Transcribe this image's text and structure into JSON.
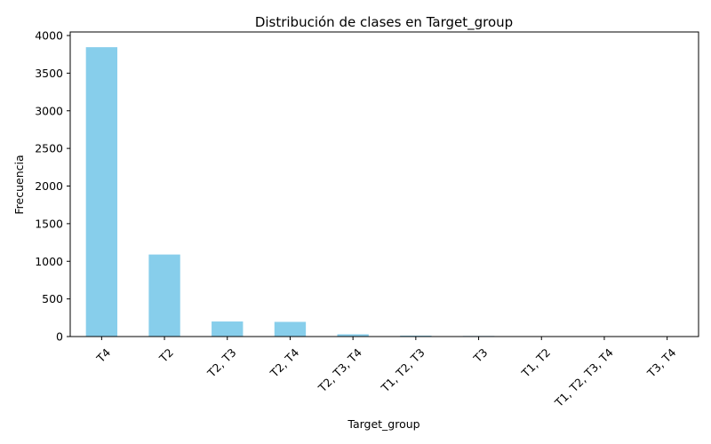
{
  "chart_data": {
    "type": "bar",
    "title": "Distribución de clases en Target_group",
    "xlabel": "Target_group",
    "ylabel": "Frecuencia",
    "categories": [
      "T4",
      "T2",
      "T2, T3",
      "T2, T4",
      "T2, T3, T4",
      "T1, T2, T3",
      "T3",
      "T1, T2",
      "T1, T2, T3, T4",
      "T3, T4"
    ],
    "values": [
      3845,
      1090,
      200,
      195,
      30,
      12,
      8,
      3,
      2,
      1
    ],
    "ylim": [
      0,
      4000
    ],
    "yticks": [
      0,
      500,
      1000,
      1500,
      2000,
      2500,
      3000,
      3500,
      4000
    ],
    "bar_color": "#87CEEB",
    "grid": false,
    "legend": "none"
  }
}
